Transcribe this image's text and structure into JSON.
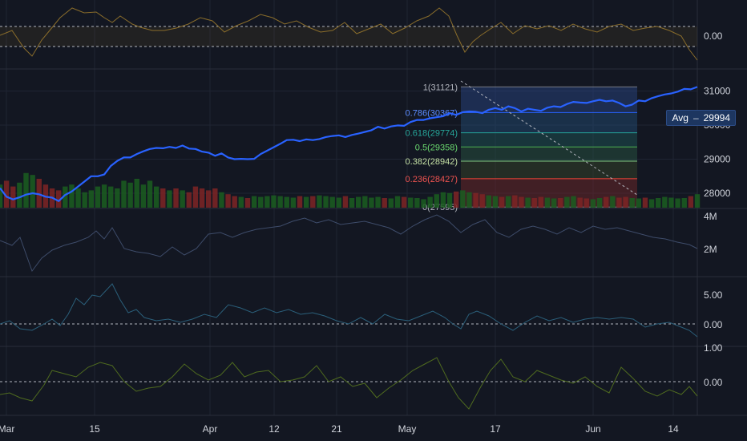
{
  "colors": {
    "background": "#131722",
    "grid": "#1f2433",
    "price_line": "#2962ff",
    "axis_text": "#d1d4dc",
    "up_volume": "#1b5e20",
    "down_volume": "#7f2525",
    "osc_top": "#8a6d2b",
    "volume_line": "#3e4c6a",
    "osc_blue": "#2b5f7a",
    "osc_green": "#4f6b1f",
    "fib_upper": "#2a4a8c",
    "fib_lower": "#7a2a2a"
  },
  "x_axis": {
    "labels": [
      "Mar",
      "15",
      "Apr",
      "12",
      "21",
      "May",
      "17",
      "Jun",
      "14"
    ]
  },
  "panes": {
    "top_osc": {
      "tick": "0.00"
    },
    "price": {
      "ticks": [
        "31000",
        "30000",
        "29000",
        "28000"
      ]
    },
    "volume": {
      "ticks": [
        "4M",
        "2M"
      ]
    },
    "osc2": {
      "ticks": [
        "5.00",
        "0.00"
      ]
    },
    "osc3": {
      "ticks": [
        "1.00",
        "0.00"
      ]
    }
  },
  "avg_badge": {
    "label": "Avg",
    "value": "29994"
  },
  "chart_data": {
    "type": "line",
    "title": "",
    "x": [
      "Mar 1",
      "Mar 2",
      "Mar 3",
      "Mar 4",
      "Mar 5",
      "Mar 6",
      "Mar 7",
      "Mar 8",
      "Mar 9",
      "Mar 10",
      "Mar 11",
      "Mar 12",
      "Mar 13",
      "Mar 14",
      "Mar 15",
      "Mar 16",
      "Mar 17",
      "Mar 18",
      "Mar 19",
      "Mar 20",
      "Mar 21",
      "Mar 22",
      "Mar 23",
      "Mar 24",
      "Mar 25",
      "Mar 26",
      "Mar 27",
      "Mar 28",
      "Mar 29",
      "Mar 30",
      "Mar 31",
      "Apr 1",
      "Apr 2",
      "Apr 3",
      "Apr 4",
      "Apr 5",
      "Apr 6",
      "Apr 7",
      "Apr 8",
      "Apr 9",
      "Apr 10",
      "Apr 11",
      "Apr 12",
      "Apr 13",
      "Apr 14",
      "Apr 15",
      "Apr 16",
      "Apr 17",
      "Apr 18",
      "Apr 19",
      "Apr 20",
      "Apr 21",
      "Apr 22",
      "Apr 23",
      "Apr 24",
      "Apr 25",
      "Apr 26",
      "Apr 27",
      "Apr 28",
      "Apr 29",
      "Apr 30",
      "May 1",
      "May 2",
      "May 3",
      "May 4",
      "May 5",
      "May 6",
      "May 7",
      "May 8",
      "May 9",
      "May 10",
      "May 11",
      "May 12",
      "May 13",
      "May 14",
      "May 15",
      "May 16",
      "May 17",
      "May 18",
      "May 19",
      "May 20",
      "May 21",
      "May 22",
      "May 23",
      "May 24",
      "May 25",
      "May 26",
      "May 27",
      "May 28",
      "May 29",
      "May 30",
      "May 31",
      "Jun 1",
      "Jun 2",
      "Jun 3",
      "Jun 4",
      "Jun 5",
      "Jun 6",
      "Jun 7",
      "Jun 8",
      "Jun 9",
      "Jun 10",
      "Jun 11",
      "Jun 12",
      "Jun 13",
      "Jun 14",
      "Jun 15",
      "Jun 16"
    ],
    "series": [
      {
        "values": [
          28150,
          27900,
          27820,
          27880,
          27960,
          28000,
          27970,
          27900,
          27870,
          27770,
          27950,
          28050,
          28200,
          28350,
          28500,
          28500,
          28550,
          28800,
          28950,
          29050,
          29050,
          29150,
          29230,
          29300,
          29330,
          29320,
          29360,
          29330,
          29400,
          29310,
          29300,
          29220,
          29190,
          29100,
          29170,
          29050,
          29000,
          29010,
          29000,
          29010,
          29150,
          29250,
          29350,
          29450,
          29560,
          29570,
          29530,
          29580,
          29560,
          29590,
          29650,
          29680,
          29700,
          29650,
          29710,
          29750,
          29800,
          29850,
          29950,
          29900,
          29960,
          29990,
          29980,
          30090,
          30150,
          30150,
          30200,
          30230,
          30260,
          30350,
          30300,
          30380,
          30400,
          30390,
          30350,
          30450,
          30500,
          30450,
          30550,
          30500,
          30400,
          30480,
          30450,
          30420,
          30510,
          30550,
          30530,
          30620,
          30680,
          30660,
          30650,
          30700,
          30740,
          30700,
          30720,
          30650,
          30550,
          30600,
          30720,
          30700,
          30790,
          30850,
          30900,
          30930,
          30980,
          31060,
          31050,
          31120
        ]
      }
    ],
    "fib": {
      "levels": [
        {
          "ratio": "1",
          "value": 31121,
          "label": "1(31121)"
        },
        {
          "ratio": "0.786",
          "value": 30367,
          "label": "0.786(30367)"
        },
        {
          "ratio": "0.618",
          "value": 29774,
          "label": "0.618(29774)"
        },
        {
          "ratio": "0.5",
          "value": 29358,
          "label": "0.5(29358)"
        },
        {
          "ratio": "0.382",
          "value": 28942,
          "label": "0.382(28942)"
        },
        {
          "ratio": "0.236",
          "value": 28427,
          "label": "0.236(28427)"
        },
        {
          "ratio": "0",
          "value": 27595,
          "label": "0(27595)"
        }
      ]
    },
    "price_ylim": [
      27600,
      31600
    ],
    "volume_ylim": [
      0,
      4500000
    ],
    "osc2_ylim": [
      -2,
      7
    ],
    "osc3_ylim": [
      -1,
      1.3
    ]
  }
}
